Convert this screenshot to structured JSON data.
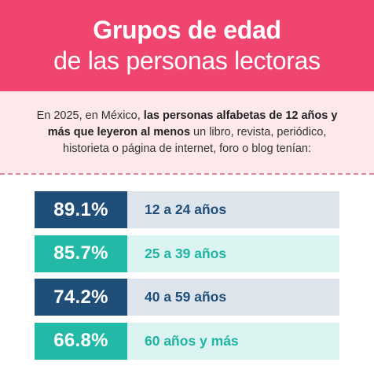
{
  "header": {
    "title_line1": "Grupos de edad",
    "title_line2": "de las personas lectoras"
  },
  "intro": {
    "text_before": "En 2025, en México, ",
    "text_bold": "las personas alfabetas de 12 años y más que leyeron al menos",
    "text_after": " un libro, revista, periódico, historieta o página de internet, foro o blog tenían:"
  },
  "colors": {
    "header_bg": "#f0456f",
    "intro_bg": "#fde8ec",
    "dark_blue": "#1f4e79",
    "teal": "#22b9a6"
  },
  "age_groups": [
    {
      "percent": "89.1%",
      "label": "12 a 24 años",
      "style": "dark"
    },
    {
      "percent": "85.7%",
      "label": "25 a 39 años",
      "style": "teal"
    },
    {
      "percent": "74.2%",
      "label": "40 a 59 años",
      "style": "dark"
    },
    {
      "percent": "66.8%",
      "label": "60 años y más",
      "style": "teal"
    }
  ]
}
